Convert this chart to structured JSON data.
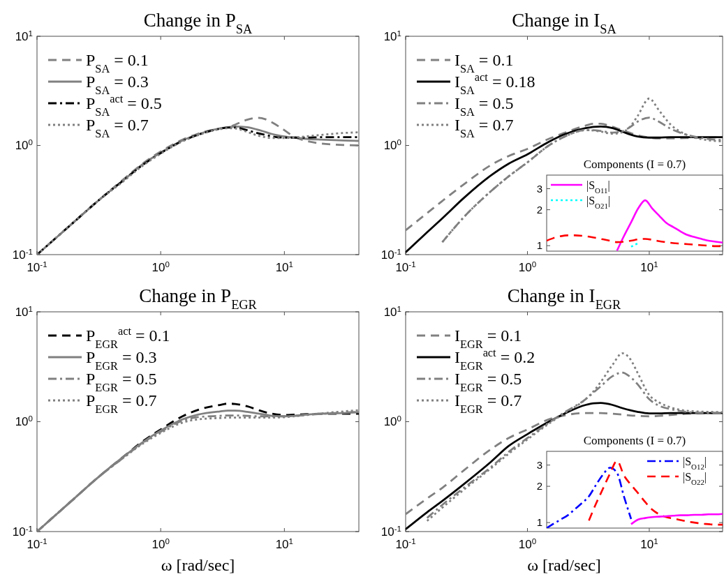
{
  "chart_data": [
    {
      "type": "line",
      "title": "Change in P$_{SA}$",
      "x": [
        0.1,
        0.15,
        0.2,
        0.3,
        0.5,
        0.7,
        1,
        1.5,
        2,
        3,
        3.5,
        4,
        5,
        6,
        7,
        8,
        10,
        12,
        15,
        20,
        30,
        40
      ],
      "xlim": [
        0.1,
        40
      ],
      "ylim": [
        0.1,
        10
      ],
      "xticks": [
        {
          "value": 0.1,
          "label": "10$^{-1}$"
        },
        {
          "value": 1,
          "label": "10$^{0}$"
        },
        {
          "value": 10,
          "label": "10$^{1}$"
        }
      ],
      "yticks": [
        {
          "value": 0.1,
          "label": "10$^{-1}$"
        },
        {
          "value": 1,
          "label": "10$^{0}$"
        },
        {
          "value": 10,
          "label": "10$^{1}$"
        }
      ],
      "log": "xy",
      "legend": "top left",
      "series": [
        {
          "name": "P$_{SA}$ = 0.1",
          "color": "#808080",
          "line_style": "dashed",
          "values": [
            0.1,
            0.15,
            0.2,
            0.3,
            0.49,
            0.67,
            0.88,
            1.13,
            1.28,
            1.43,
            1.46,
            1.55,
            1.72,
            1.79,
            1.74,
            1.62,
            1.38,
            1.2,
            1.1,
            1.04,
            1.01,
            1.0
          ]
        },
        {
          "name": "P$_{SA}$ = 0.3",
          "color": "#808080",
          "line_style": "solid",
          "values": [
            0.1,
            0.15,
            0.2,
            0.3,
            0.48,
            0.66,
            0.86,
            1.11,
            1.26,
            1.43,
            1.47,
            1.49,
            1.47,
            1.4,
            1.33,
            1.27,
            1.21,
            1.18,
            1.15,
            1.13,
            1.11,
            1.1
          ]
        },
        {
          "name": "P$_{SA}$$^{act}$ = 0.5",
          "color": "#000000",
          "line_style": "dashdot",
          "values": [
            0.1,
            0.15,
            0.2,
            0.3,
            0.48,
            0.65,
            0.85,
            1.1,
            1.25,
            1.42,
            1.46,
            1.46,
            1.38,
            1.3,
            1.25,
            1.21,
            1.18,
            1.18,
            1.18,
            1.19,
            1.19,
            1.19
          ]
        },
        {
          "name": "P$_{SA}$ = 0.7",
          "color": "#808080",
          "line_style": "dotted",
          "values": [
            0.1,
            0.15,
            0.2,
            0.3,
            0.47,
            0.64,
            0.84,
            1.09,
            1.24,
            1.41,
            1.44,
            1.43,
            1.33,
            1.24,
            1.19,
            1.17,
            1.17,
            1.18,
            1.21,
            1.25,
            1.3,
            1.32
          ]
        }
      ]
    },
    {
      "type": "line",
      "title": "Change in I$_{SA}$",
      "x": [
        0.1,
        0.15,
        0.2,
        0.3,
        0.5,
        0.7,
        1,
        1.5,
        2,
        3,
        3.5,
        4,
        5,
        6,
        7,
        8,
        10,
        12,
        15,
        20,
        30,
        40
      ],
      "xlim": [
        0.1,
        40
      ],
      "ylim": [
        0.1,
        10
      ],
      "xticks": [
        {
          "value": 0.1,
          "label": "10$^{-1}$"
        },
        {
          "value": 1,
          "label": "10$^{0}$"
        },
        {
          "value": 10,
          "label": "10$^{1}$"
        }
      ],
      "yticks": [
        {
          "value": 0.1,
          "label": "10$^{-1}$"
        },
        {
          "value": 1,
          "label": "10$^{0}$"
        },
        {
          "value": 10,
          "label": "10$^{1}$"
        }
      ],
      "log": "xy",
      "legend": "top left",
      "series": [
        {
          "name": "I$_{SA}$ = 0.1",
          "color": "#808080",
          "line_style": "dashed",
          "values": [
            0.167,
            0.24,
            0.31,
            0.44,
            0.66,
            0.8,
            0.93,
            1.15,
            1.3,
            1.52,
            1.58,
            1.58,
            1.48,
            1.38,
            1.3,
            1.24,
            1.18,
            1.16,
            1.16,
            1.17,
            1.18,
            1.19
          ]
        },
        {
          "name": "I$_{SA}$$^{act}$ = 0.18",
          "color": "#000000",
          "line_style": "solid",
          "values": [
            0.105,
            0.16,
            0.215,
            0.33,
            0.53,
            0.68,
            0.83,
            1.08,
            1.26,
            1.44,
            1.48,
            1.49,
            1.44,
            1.34,
            1.26,
            1.21,
            1.18,
            1.18,
            1.19,
            1.19,
            1.19,
            1.19
          ]
        },
        {
          "name": "I$_{SA}$ = 0.5",
          "color": "#808080",
          "line_style": "dashdot",
          "values": [
            null,
            null,
            0.13,
            0.22,
            0.38,
            0.52,
            0.7,
            1.0,
            1.2,
            1.38,
            1.38,
            1.36,
            1.31,
            1.35,
            1.48,
            1.65,
            1.8,
            1.65,
            1.42,
            1.26,
            1.15,
            1.12
          ]
        },
        {
          "name": "I$_{SA}$ = 0.7",
          "color": "#808080",
          "line_style": "dotted",
          "values": [
            null,
            null,
            0.13,
            0.22,
            0.38,
            0.52,
            0.7,
            1.0,
            1.2,
            1.38,
            1.37,
            1.34,
            1.28,
            1.32,
            1.5,
            1.85,
            2.69,
            2.1,
            1.55,
            1.26,
            1.12,
            1.09
          ]
        }
      ]
    },
    {
      "type": "line",
      "title": "Change in P$_{EGR}$",
      "xlabel": "ω [rad/sec]",
      "x": [
        0.1,
        0.15,
        0.2,
        0.3,
        0.5,
        0.7,
        1,
        1.5,
        2,
        3,
        3.5,
        4,
        5,
        6,
        7,
        8,
        10,
        12,
        15,
        20,
        30,
        40
      ],
      "xlim": [
        0.1,
        40
      ],
      "ylim": [
        0.1,
        10
      ],
      "xticks": [
        {
          "value": 0.1,
          "label": "10$^{-1}$"
        },
        {
          "value": 1,
          "label": "10$^{0}$"
        },
        {
          "value": 10,
          "label": "10$^{1}$"
        }
      ],
      "yticks": [
        {
          "value": 0.1,
          "label": "10$^{-1}$"
        },
        {
          "value": 1,
          "label": "10$^{0}$"
        },
        {
          "value": 10,
          "label": "10$^{1}$"
        }
      ],
      "log": "xy",
      "legend": "top left",
      "series": [
        {
          "name": "P$_{EGR}$$^{act}$ = 0.1",
          "color": "#000000",
          "line_style": "dashed",
          "values": [
            0.1,
            0.15,
            0.2,
            0.3,
            0.48,
            0.65,
            0.85,
            1.12,
            1.28,
            1.42,
            1.46,
            1.45,
            1.38,
            1.29,
            1.22,
            1.18,
            1.15,
            1.16,
            1.17,
            1.18,
            1.18,
            1.18
          ]
        },
        {
          "name": "P$_{EGR}$ = 0.3",
          "color": "#808080",
          "line_style": "solid",
          "values": [
            0.1,
            0.15,
            0.2,
            0.3,
            0.48,
            0.64,
            0.83,
            1.05,
            1.16,
            1.24,
            1.26,
            1.26,
            1.23,
            1.19,
            1.16,
            1.13,
            1.12,
            1.13,
            1.16,
            1.18,
            1.2,
            1.22
          ]
        },
        {
          "name": "P$_{EGR}$ = 0.5",
          "color": "#808080",
          "line_style": "dashdot",
          "values": [
            0.1,
            0.15,
            0.2,
            0.3,
            0.47,
            0.63,
            0.81,
            1.02,
            1.1,
            1.13,
            1.14,
            1.14,
            1.13,
            1.12,
            1.12,
            1.12,
            1.12,
            1.13,
            1.15,
            1.18,
            1.21,
            1.23
          ]
        },
        {
          "name": "P$_{EGR}$ = 0.7",
          "color": "#808080",
          "line_style": "dotted",
          "values": [
            0.1,
            0.15,
            0.2,
            0.3,
            0.47,
            0.62,
            0.79,
            0.98,
            1.05,
            1.08,
            1.09,
            1.09,
            1.09,
            1.09,
            1.09,
            1.09,
            1.1,
            1.12,
            1.15,
            1.19,
            1.24,
            1.27
          ]
        }
      ]
    },
    {
      "type": "line",
      "title": "Change in I$_{EGR}$",
      "xlabel": "ω [rad/sec]",
      "x": [
        0.1,
        0.15,
        0.2,
        0.3,
        0.5,
        0.7,
        1,
        1.5,
        2,
        3,
        3.5,
        4,
        5,
        6,
        7,
        8,
        10,
        12,
        15,
        20,
        30,
        40
      ],
      "xlim": [
        0.1,
        40
      ],
      "ylim": [
        0.1,
        10
      ],
      "xticks": [
        {
          "value": 0.1,
          "label": "10$^{-1}$"
        },
        {
          "value": 1,
          "label": "10$^{0}$"
        },
        {
          "value": 10,
          "label": "10$^{1}$"
        }
      ],
      "yticks": [
        {
          "value": 0.1,
          "label": "10$^{-1}$"
        },
        {
          "value": 1,
          "label": "10$^{0}$"
        },
        {
          "value": 10,
          "label": "10$^{1}$"
        }
      ],
      "log": "xy",
      "legend": "top left",
      "series": [
        {
          "name": "I$_{EGR}$ = 0.1",
          "color": "#808080",
          "line_style": "dashed",
          "values": [
            0.144,
            0.2,
            0.25,
            0.36,
            0.56,
            0.71,
            0.85,
            1.05,
            1.14,
            1.2,
            1.2,
            1.2,
            1.18,
            1.16,
            1.14,
            1.13,
            1.12,
            1.13,
            1.15,
            1.18,
            1.2,
            1.2
          ]
        },
        {
          "name": "I$_{EGR}$$^{act}$ = 0.2",
          "color": "#000000",
          "line_style": "solid",
          "values": [
            0.105,
            0.15,
            0.19,
            0.27,
            0.43,
            0.6,
            0.77,
            1.0,
            1.18,
            1.42,
            1.47,
            1.48,
            1.42,
            1.33,
            1.27,
            1.23,
            1.19,
            1.19,
            1.2,
            1.2,
            1.2,
            1.2
          ]
        },
        {
          "name": "I$_{EGR}$ = 0.5",
          "color": "#808080",
          "line_style": "dashdot",
          "values": [
            null,
            0.133,
            0.175,
            0.25,
            0.385,
            0.53,
            0.71,
            0.98,
            1.21,
            1.6,
            1.85,
            2.1,
            2.6,
            2.8,
            2.55,
            2.2,
            1.6,
            1.4,
            1.3,
            1.23,
            1.2,
            1.19
          ]
        },
        {
          "name": "I$_{EGR}$ = 0.7",
          "color": "#808080",
          "line_style": "dotted",
          "values": [
            null,
            0.125,
            0.165,
            0.24,
            0.375,
            0.51,
            0.69,
            0.96,
            1.19,
            1.6,
            1.9,
            2.3,
            3.3,
            4.2,
            3.7,
            2.8,
            1.75,
            1.5,
            1.35,
            1.26,
            1.23,
            1.22
          ]
        }
      ]
    },
    {
      "type": "line",
      "title": "Components (I = 0.7)",
      "categories": [
        null,
        null,
        null,
        null,
        null,
        null,
        null,
        null,
        null,
        null,
        null,
        null,
        null,
        null,
        null,
        null,
        null,
        null,
        null,
        null,
        null,
        null,
        null,
        null,
        null,
        null
      ],
      "ylim": [
        0.9,
        3.9
      ],
      "yticks": [
        1,
        2,
        3
      ],
      "log": "y",
      "tick_labels": "y",
      "legend": "top left",
      "series": [
        {
          "name": "|S$_{O11}$|",
          "color": "#ff00ff",
          "line_style": "solid",
          "values": [
            null,
            null,
            null,
            null,
            null,
            null,
            null,
            null,
            null,
            null,
            0.91,
            1.21,
            1.57,
            2.05,
            2.4,
            2.05,
            1.78,
            1.55,
            1.43,
            1.32,
            1.23,
            1.18,
            1.14,
            1.1,
            1.08,
            1.06
          ]
        },
        {
          "name": "|S$_{O21}$|",
          "color": "#00ffff",
          "line_style": "dotted",
          "values": [
            null,
            null,
            null,
            null,
            null,
            null,
            null,
            null,
            null,
            null,
            null,
            null,
            0.98,
            1.05,
            null,
            null,
            null,
            null,
            null,
            null,
            null,
            null,
            null,
            null,
            null,
            null
          ]
        },
        {
          "color": "#ff0000",
          "line_style": "dashed",
          "values": [
            1.1,
            1.16,
            1.2,
            1.22,
            1.22,
            1.21,
            1.19,
            1.16,
            1.13,
            1.1,
            1.07,
            1.08,
            1.1,
            1.13,
            1.14,
            1.12,
            1.09,
            1.07,
            1.05,
            1.04,
            1.03,
            1.02,
            1.01,
            1.0,
            0.99,
            0.99
          ]
        }
      ]
    },
    {
      "type": "line",
      "title": "Components (I = 0.7)",
      "categories": [
        null,
        null,
        null,
        null,
        null,
        null,
        null,
        null,
        null,
        null,
        null,
        null,
        null,
        null,
        null,
        null,
        null,
        null,
        null,
        null,
        null,
        null,
        null,
        null,
        null,
        null
      ],
      "ylim": [
        0.9,
        3.9
      ],
      "yticks": [
        1,
        2,
        3
      ],
      "log": "y",
      "tick_labels": "y",
      "legend": "top right",
      "series": [
        {
          "name": "|S$_{O12}$|",
          "color": "#0000ff",
          "line_style": "dashdot",
          "values": [
            0.9,
            0.98,
            1.06,
            1.15,
            1.29,
            1.45,
            1.65,
            2.05,
            2.5,
            2.85,
            2.58,
            1.63,
            1.07,
            null,
            null,
            null,
            null,
            null,
            null,
            null,
            null,
            null,
            null,
            null,
            null,
            null
          ]
        },
        {
          "name": "|S$_{O22}$|",
          "color": "#ff0000",
          "line_style": "dashed",
          "values": [
            null,
            null,
            null,
            null,
            null,
            null,
            1.04,
            1.43,
            1.91,
            2.55,
            3.25,
            2.45,
            2.05,
            1.75,
            1.48,
            1.28,
            1.17,
            1.11,
            1.08,
            1.05,
            1.02,
            1.0,
            0.98,
            0.97,
            0.96,
            0.96
          ]
        },
        {
          "color": "#ff00ff",
          "line_style": "solid",
          "values": [
            null,
            null,
            null,
            null,
            null,
            null,
            null,
            null,
            null,
            null,
            null,
            null,
            0.97,
            1.06,
            1.09,
            1.11,
            1.12,
            1.13,
            1.14,
            1.15,
            1.15,
            1.16,
            1.16,
            1.17,
            1.17,
            1.18
          ]
        }
      ]
    }
  ]
}
